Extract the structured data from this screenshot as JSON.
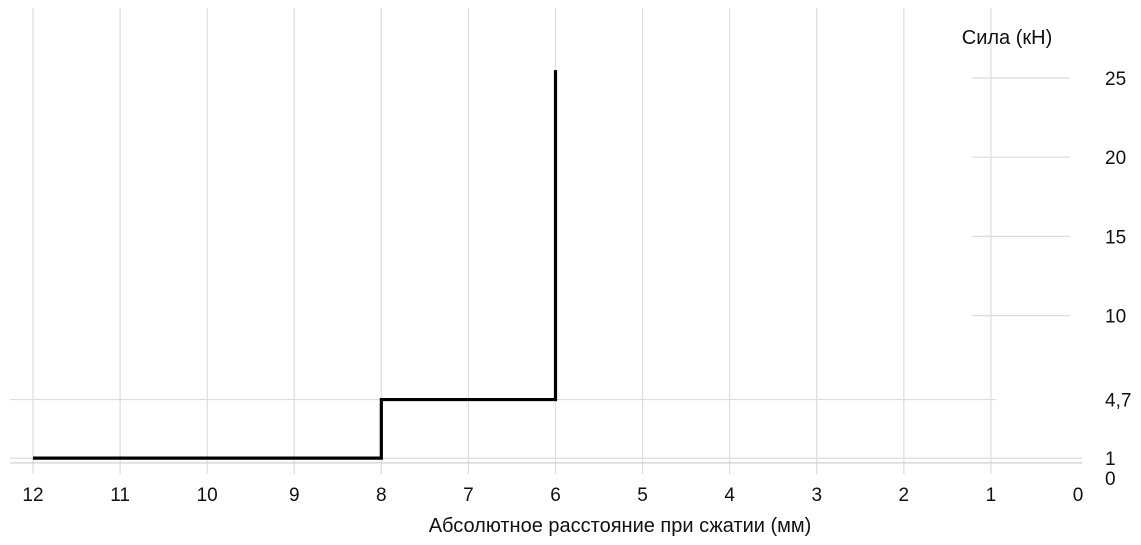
{
  "chart_data": {
    "type": "line",
    "title": "",
    "xlabel": "Абсолютное расстояние при сжатии (мм)",
    "ylabel": "Сила (кН)",
    "x_ticks": [
      "12",
      "11",
      "10",
      "9",
      "8",
      "7",
      "6",
      "5",
      "4",
      "3",
      "2",
      "1",
      "0"
    ],
    "x_tick_values": [
      12,
      11,
      10,
      9,
      8,
      7,
      6,
      5,
      4,
      3,
      2,
      1,
      0
    ],
    "y_ticks": [
      "0",
      "1",
      "4,7",
      "10",
      "15",
      "20",
      "25"
    ],
    "y_tick_values": [
      0,
      1,
      4.7,
      10,
      15,
      20,
      25
    ],
    "xlim": [
      12,
      0
    ],
    "x_reversed": true,
    "ylim": [
      0,
      29
    ],
    "y_axis_side": "right",
    "grid": true,
    "series": [
      {
        "color": "#000000",
        "points": [
          {
            "x": 12,
            "y": 1
          },
          {
            "x": 8,
            "y": 1
          },
          {
            "x": 8,
            "y": 4.7
          },
          {
            "x": 6,
            "y": 4.7
          },
          {
            "x": 6,
            "y": 25.5
          }
        ]
      }
    ],
    "colors": {
      "grid": "#dcdcdc",
      "line": "#000000",
      "text": "#111111"
    }
  }
}
